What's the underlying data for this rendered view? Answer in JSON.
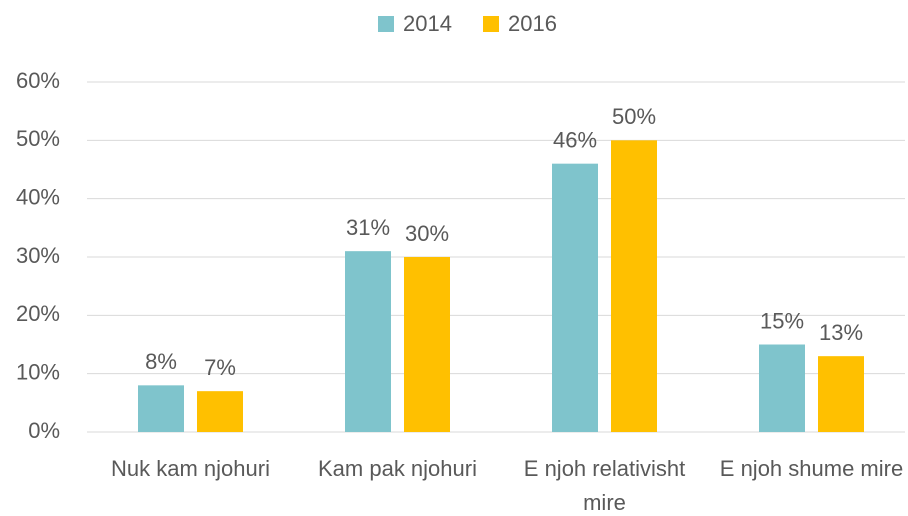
{
  "chart_data": {
    "type": "bar",
    "categories": [
      "Nuk kam njohuri",
      "Kam pak njohuri",
      "E njoh relativisht mire",
      "E njoh shume mire"
    ],
    "series": [
      {
        "name": "2014",
        "color": "#7fc4cc",
        "values": [
          8,
          31,
          46,
          15
        ],
        "value_labels": [
          "8%",
          "31%",
          "46%",
          "15%"
        ]
      },
      {
        "name": "2016",
        "color": "#ffc000",
        "values": [
          7,
          30,
          50,
          13
        ],
        "value_labels": [
          "7%",
          "30%",
          "50%",
          "13%"
        ]
      }
    ],
    "ylim": [
      0,
      60
    ],
    "yticks": [
      {
        "value": 0,
        "label": "0%"
      },
      {
        "value": 10,
        "label": "10%"
      },
      {
        "value": 20,
        "label": "20%"
      },
      {
        "value": 30,
        "label": "30%"
      },
      {
        "value": 40,
        "label": "40%"
      },
      {
        "value": 50,
        "label": "50%"
      },
      {
        "value": 60,
        "label": "60%"
      }
    ],
    "grid": true,
    "legend": "top"
  }
}
